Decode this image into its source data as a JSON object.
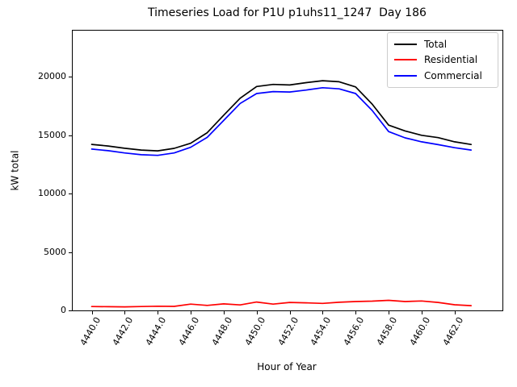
{
  "title": "Timeseries Load for P1U p1uhs11_1247  Day 186",
  "chart_data": {
    "type": "line",
    "title": "Timeseries Load for P1U p1uhs11_1247  Day 186",
    "xlabel": "Hour of Year",
    "ylabel": "kW total",
    "xlim": [
      4438.8,
      4464.9
    ],
    "ylim": [
      0,
      24000
    ],
    "grid": false,
    "legend_position": "upper right",
    "xticks": [
      4440,
      4442,
      4444,
      4446,
      4448,
      4450,
      4452,
      4454,
      4456,
      4458,
      4460,
      4462
    ],
    "xtick_labels": [
      "4440.0",
      "4442.0",
      "4444.0",
      "4446.0",
      "4448.0",
      "4450.0",
      "4452.0",
      "4454.0",
      "4456.0",
      "4458.0",
      "4460.0",
      "4462.0"
    ],
    "yticks": [
      0,
      5000,
      10000,
      15000,
      20000
    ],
    "ytick_labels": [
      "0",
      "5000",
      "10000",
      "15000",
      "20000"
    ],
    "x": [
      4440,
      4441,
      4442,
      4443,
      4444,
      4445,
      4446,
      4447,
      4448,
      4449,
      4450,
      4451,
      4452,
      4453,
      4454,
      4455,
      4456,
      4457,
      4458,
      4459,
      4460,
      4461,
      4462,
      4463
    ],
    "series": [
      {
        "name": "Total",
        "color": "#000000",
        "values": [
          14200,
          14060,
          13870,
          13720,
          13650,
          13860,
          14300,
          15200,
          16700,
          18150,
          19150,
          19330,
          19280,
          19480,
          19650,
          19560,
          19120,
          17650,
          15850,
          15350,
          14980,
          14780,
          14420,
          14190
        ]
      },
      {
        "name": "Residential",
        "color": "#ff0000",
        "values": [
          330,
          315,
          300,
          330,
          360,
          345,
          540,
          430,
          560,
          470,
          720,
          540,
          680,
          650,
          600,
          700,
          760,
          790,
          860,
          760,
          810,
          680,
          480,
          410
        ]
      },
      {
        "name": "Commercial",
        "color": "#0000ff",
        "values": [
          13800,
          13660,
          13470,
          13320,
          13260,
          13470,
          13950,
          14800,
          16250,
          17700,
          18550,
          18720,
          18680,
          18850,
          19050,
          18950,
          18550,
          17100,
          15300,
          14760,
          14420,
          14180,
          13920,
          13720
        ]
      }
    ]
  }
}
